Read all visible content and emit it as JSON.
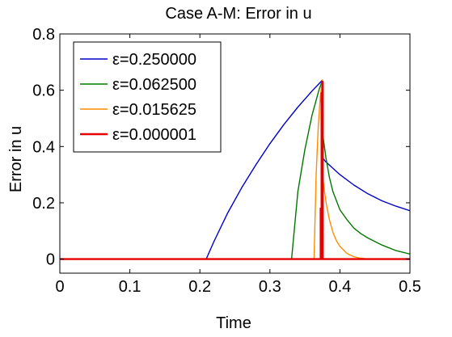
{
  "chart_data": {
    "type": "line",
    "title": "Case A-M: Error in u",
    "xlabel": "Time",
    "ylabel": "Error in u",
    "xlim": [
      0,
      0.5
    ],
    "ylim": [
      -0.05,
      0.8
    ],
    "xticks": [
      0,
      0.1,
      0.2,
      0.3,
      0.4,
      0.5
    ],
    "xtick_labels": [
      "0",
      "0.1",
      "0.2",
      "0.3",
      "0.4",
      "0.5"
    ],
    "yticks": [
      0,
      0.2,
      0.4,
      0.6,
      0.8
    ],
    "ytick_labels": [
      "0",
      "0.2",
      "0.4",
      "0.6",
      "0.8"
    ],
    "grid": false,
    "legend_position": "top-left",
    "series": [
      {
        "name": "ε=0.250000",
        "color": "#0000c8",
        "x": [
          0,
          0.209,
          0.22,
          0.24,
          0.26,
          0.28,
          0.3,
          0.32,
          0.34,
          0.36,
          0.375,
          0.375,
          0.38,
          0.4,
          0.42,
          0.44,
          0.46,
          0.48,
          0.5
        ],
        "y": [
          0,
          0,
          0.062,
          0.165,
          0.255,
          0.335,
          0.41,
          0.478,
          0.54,
          0.597,
          0.636,
          0.36,
          0.345,
          0.3,
          0.263,
          0.232,
          0.207,
          0.188,
          0.172
        ]
      },
      {
        "name": "ε=0.062500",
        "color": "#007800",
        "x": [
          0,
          0.331,
          0.34,
          0.35,
          0.36,
          0.37,
          0.375,
          0.375,
          0.38,
          0.385,
          0.39,
          0.4,
          0.41,
          0.42,
          0.43,
          0.44,
          0.46,
          0.48,
          0.5
        ],
        "y": [
          0,
          0,
          0.24,
          0.39,
          0.51,
          0.6,
          0.636,
          0.45,
          0.36,
          0.29,
          0.24,
          0.175,
          0.14,
          0.11,
          0.09,
          0.075,
          0.05,
          0.03,
          0.018
        ]
      },
      {
        "name": "ε=0.015625",
        "color": "#ff8c00",
        "x": [
          0,
          0.363,
          0.366,
          0.369,
          0.372,
          0.375,
          0.375,
          0.378,
          0.381,
          0.385,
          0.39,
          0.395,
          0.4,
          0.41,
          0.42,
          0.43,
          0.44,
          0.5
        ],
        "y": [
          0,
          0,
          0.3,
          0.47,
          0.58,
          0.636,
          0.3,
          0.24,
          0.19,
          0.14,
          0.095,
          0.065,
          0.045,
          0.02,
          0.008,
          0.003,
          0,
          0
        ],
        "spikes": [
          {
            "x": 0.3743,
            "y": 0.55
          }
        ]
      },
      {
        "name": "ε=0.000001",
        "color": "#e60000",
        "x": [
          0,
          0.3725,
          0.3725,
          0.3732,
          0.3732,
          0.3738,
          0.3738,
          0.3745,
          0.3745,
          0.375,
          0.375,
          0.3755,
          0.3755,
          0.5
        ],
        "y": [
          0,
          0,
          0.18,
          0.18,
          0,
          0,
          0.59,
          0.59,
          0,
          0,
          0.63,
          0.63,
          0,
          0
        ]
      }
    ]
  }
}
